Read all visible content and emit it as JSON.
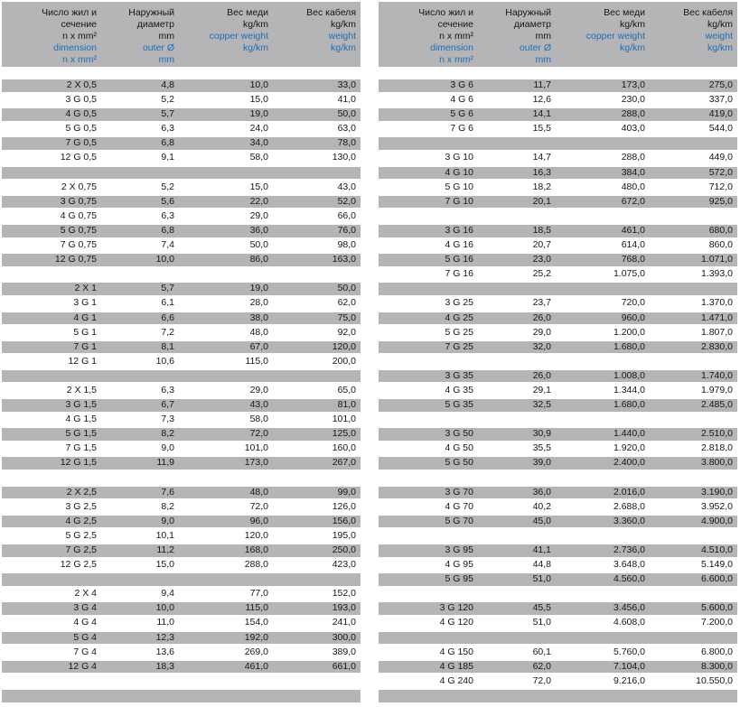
{
  "colors": {
    "band_gray": "#b5b5b7",
    "accent_blue": "#1e6eb5",
    "text_black": "#161616"
  },
  "header": {
    "cols": [
      {
        "ru": [
          "Число жил и",
          "сечение",
          "n x mm²"
        ],
        "en": [
          "dimension",
          "n x mm²"
        ]
      },
      {
        "ru": [
          "Наружный",
          "диаметр",
          "mm"
        ],
        "en": [
          "outer Ø",
          "mm"
        ]
      },
      {
        "ru": [
          "Вес меди",
          "kg/km"
        ],
        "en": [
          "copper weight",
          "kg/km"
        ]
      },
      {
        "ru": [
          "Вес кабеля",
          "kg/km"
        ],
        "en": [
          "weight",
          "kg/km"
        ]
      }
    ]
  },
  "tables": {
    "left": {
      "rows": [
        {
          "shade": "gray",
          "cells": [
            "2 X 0,5",
            "4,8",
            "10,0",
            "33,0"
          ]
        },
        {
          "shade": "white",
          "cells": [
            "3 G 0,5",
            "5,2",
            "15,0",
            "41,0"
          ]
        },
        {
          "shade": "gray",
          "cells": [
            "4 G 0,5",
            "5,7",
            "19,0",
            "50,0"
          ]
        },
        {
          "shade": "white",
          "cells": [
            "5 G 0,5",
            "6,3",
            "24,0",
            "63,0"
          ]
        },
        {
          "shade": "gray",
          "cells": [
            "7 G 0,5",
            "6,8",
            "34,0",
            "78,0"
          ]
        },
        {
          "shade": "white",
          "cells": [
            "12 G 0,5",
            "9,1",
            "58,0",
            "130,0"
          ]
        },
        {
          "shade": "gray"
        },
        {
          "shade": "white",
          "cells": [
            "2 X 0,75",
            "5,2",
            "15,0",
            "43,0"
          ]
        },
        {
          "shade": "gray",
          "cells": [
            "3 G 0,75",
            "5,6",
            "22,0",
            "52,0"
          ]
        },
        {
          "shade": "white",
          "cells": [
            "4 G 0,75",
            "6,3",
            "29,0",
            "66,0"
          ]
        },
        {
          "shade": "gray",
          "cells": [
            "5 G 0,75",
            "6,8",
            "36,0",
            "76,0"
          ]
        },
        {
          "shade": "white",
          "cells": [
            "7 G 0,75",
            "7,4",
            "50,0",
            "98,0"
          ]
        },
        {
          "shade": "gray",
          "cells": [
            "12 G 0,75",
            "10,0",
            "86,0",
            "163,0"
          ]
        },
        {
          "shade": "white"
        },
        {
          "shade": "gray",
          "cells": [
            "2 X 1",
            "5,7",
            "19,0",
            "50,0"
          ]
        },
        {
          "shade": "white",
          "cells": [
            "3 G 1",
            "6,1",
            "28,0",
            "62,0"
          ]
        },
        {
          "shade": "gray",
          "cells": [
            "4 G 1",
            "6,6",
            "38,0",
            "75,0"
          ]
        },
        {
          "shade": "white",
          "cells": [
            "5 G 1",
            "7,2",
            "48,0",
            "92,0"
          ]
        },
        {
          "shade": "gray",
          "cells": [
            "7 G 1",
            "8,1",
            "67,0",
            "120,0"
          ]
        },
        {
          "shade": "white",
          "cells": [
            "12 G 1",
            "10,6",
            "115,0",
            "200,0"
          ]
        },
        {
          "shade": "gray"
        },
        {
          "shade": "white",
          "cells": [
            "2 X 1,5",
            "6,3",
            "29,0",
            "65,0"
          ]
        },
        {
          "shade": "gray",
          "cells": [
            "3 G 1,5",
            "6,7",
            "43,0",
            "81,0"
          ]
        },
        {
          "shade": "white",
          "cells": [
            "4 G 1,5",
            "7,3",
            "58,0",
            "101,0"
          ]
        },
        {
          "shade": "gray",
          "cells": [
            "5 G 1,5",
            "8,2",
            "72,0",
            "125,0"
          ]
        },
        {
          "shade": "white",
          "cells": [
            "7 G 1,5",
            "9,0",
            "101,0",
            "160,0"
          ]
        },
        {
          "shade": "gray",
          "cells": [
            "12 G 1,5",
            "11,9",
            "173,0",
            "267,0"
          ]
        },
        {
          "shade": "white"
        },
        {
          "shade": "gray",
          "cells": [
            "2 X 2,5",
            "7,6",
            "48,0",
            "99,0"
          ]
        },
        {
          "shade": "white",
          "cells": [
            "3 G 2,5",
            "8,2",
            "72,0",
            "126,0"
          ]
        },
        {
          "shade": "gray",
          "cells": [
            "4 G 2,5",
            "9,0",
            "96,0",
            "156,0"
          ]
        },
        {
          "shade": "white",
          "cells": [
            "5 G 2,5",
            "10,1",
            "120,0",
            "195,0"
          ]
        },
        {
          "shade": "gray",
          "cells": [
            "7 G 2,5",
            "11,2",
            "168,0",
            "250,0"
          ]
        },
        {
          "shade": "white",
          "cells": [
            "12 G 2,5",
            "15,0",
            "288,0",
            "423,0"
          ]
        },
        {
          "shade": "gray"
        },
        {
          "shade": "white",
          "cells": [
            "2 X 4",
            "9,4",
            "77,0",
            "152,0"
          ]
        },
        {
          "shade": "gray",
          "cells": [
            "3 G 4",
            "10,0",
            "115,0",
            "193,0"
          ]
        },
        {
          "shade": "white",
          "cells": [
            "4 G 4",
            "11,0",
            "154,0",
            "241,0"
          ]
        },
        {
          "shade": "gray",
          "cells": [
            "5 G 4",
            "12,3",
            "192,0",
            "300,0"
          ]
        },
        {
          "shade": "white",
          "cells": [
            "7 G 4",
            "13,6",
            "269,0",
            "389,0"
          ]
        },
        {
          "shade": "gray",
          "cells": [
            "12 G 4",
            "18,3",
            "461,0",
            "661,0"
          ]
        },
        {
          "shade": "white"
        },
        {
          "shade": "gray"
        }
      ]
    },
    "right": {
      "rows": [
        {
          "shade": "gray",
          "cells": [
            "3 G 6",
            "11,7",
            "173,0",
            "275,0"
          ]
        },
        {
          "shade": "white",
          "cells": [
            "4 G 6",
            "12,6",
            "230,0",
            "337,0"
          ]
        },
        {
          "shade": "gray",
          "cells": [
            "5 G 6",
            "14,1",
            "288,0",
            "419,0"
          ]
        },
        {
          "shade": "white",
          "cells": [
            "7 G 6",
            "15,5",
            "403,0",
            "544,0"
          ]
        },
        {
          "shade": "gray"
        },
        {
          "shade": "white",
          "cells": [
            "3 G 10",
            "14,7",
            "288,0",
            "449,0"
          ]
        },
        {
          "shade": "gray",
          "cells": [
            "4 G 10",
            "16,3",
            "384,0",
            "572,0"
          ]
        },
        {
          "shade": "white",
          "cells": [
            "5 G 10",
            "18,2",
            "480,0",
            "712,0"
          ]
        },
        {
          "shade": "gray",
          "cells": [
            "7 G 10",
            "20,1",
            "672,0",
            "925,0"
          ]
        },
        {
          "shade": "white"
        },
        {
          "shade": "gray",
          "cells": [
            "3 G 16",
            "18,5",
            "461,0",
            "680,0"
          ]
        },
        {
          "shade": "white",
          "cells": [
            "4 G 16",
            "20,7",
            "614,0",
            "860,0"
          ]
        },
        {
          "shade": "gray",
          "cells": [
            "5 G 16",
            "23,0",
            "768,0",
            "1.071,0"
          ]
        },
        {
          "shade": "white",
          "cells": [
            "7 G 16",
            "25,2",
            "1.075,0",
            "1.393,0"
          ]
        },
        {
          "shade": "gray"
        },
        {
          "shade": "white",
          "cells": [
            "3 G 25",
            "23,7",
            "720,0",
            "1.370,0"
          ]
        },
        {
          "shade": "gray",
          "cells": [
            "4 G 25",
            "26,0",
            "960,0",
            "1.471,0"
          ]
        },
        {
          "shade": "white",
          "cells": [
            "5 G 25",
            "29,0",
            "1.200,0",
            "1.807,0"
          ]
        },
        {
          "shade": "gray",
          "cells": [
            "7 G 25",
            "32,0",
            "1.680,0",
            "2.830,0"
          ]
        },
        {
          "shade": "white"
        },
        {
          "shade": "gray",
          "cells": [
            "3 G 35",
            "26,0",
            "1.008,0",
            "1.740,0"
          ]
        },
        {
          "shade": "white",
          "cells": [
            "4 G 35",
            "29,1",
            "1.344,0",
            "1.979,0"
          ]
        },
        {
          "shade": "gray",
          "cells": [
            "5 G 35",
            "32,5",
            "1.680,0",
            "2.485,0"
          ]
        },
        {
          "shade": "white"
        },
        {
          "shade": "gray",
          "cells": [
            "3 G 50",
            "30,9",
            "1.440,0",
            "2.510,0"
          ]
        },
        {
          "shade": "white",
          "cells": [
            "4 G 50",
            "35,5",
            "1.920,0",
            "2.818,0"
          ]
        },
        {
          "shade": "gray",
          "cells": [
            "5 G 50",
            "39,0",
            "2.400,0",
            "3.800,0"
          ]
        },
        {
          "shade": "white"
        },
        {
          "shade": "gray",
          "cells": [
            "3 G 70",
            "36,0",
            "2.016,0",
            "3.190,0"
          ]
        },
        {
          "shade": "white",
          "cells": [
            "4 G 70",
            "40,2",
            "2.688,0",
            "3.952,0"
          ]
        },
        {
          "shade": "gray",
          "cells": [
            "5 G 70",
            "45,0",
            "3.360,0",
            "4.900,0"
          ]
        },
        {
          "shade": "white"
        },
        {
          "shade": "gray",
          "cells": [
            "3 G 95",
            "41,1",
            "2.736,0",
            "4.510,0"
          ]
        },
        {
          "shade": "white",
          "cells": [
            "4 G 95",
            "44,8",
            "3.648,0",
            "5.149,0"
          ]
        },
        {
          "shade": "gray",
          "cells": [
            "5 G 95",
            "51,0",
            "4.560,0",
            "6.600,0"
          ]
        },
        {
          "shade": "white"
        },
        {
          "shade": "gray",
          "cells": [
            "3 G 120",
            "45,5",
            "3.456,0",
            "5.600,0"
          ]
        },
        {
          "shade": "white",
          "cells": [
            "4 G 120",
            "51,0",
            "4.608,0",
            "7.200,0"
          ]
        },
        {
          "shade": "gray"
        },
        {
          "shade": "white",
          "cells": [
            "4 G 150",
            "60,1",
            "5.760,0",
            "6.800,0"
          ]
        },
        {
          "shade": "gray",
          "cells": [
            "4 G 185",
            "62,0",
            "7.104,0",
            "8.300,0"
          ]
        },
        {
          "shade": "white",
          "cells": [
            "4 G 240",
            "72,0",
            "9.216,0",
            "10.550,0"
          ]
        },
        {
          "shade": "gray"
        }
      ]
    }
  }
}
